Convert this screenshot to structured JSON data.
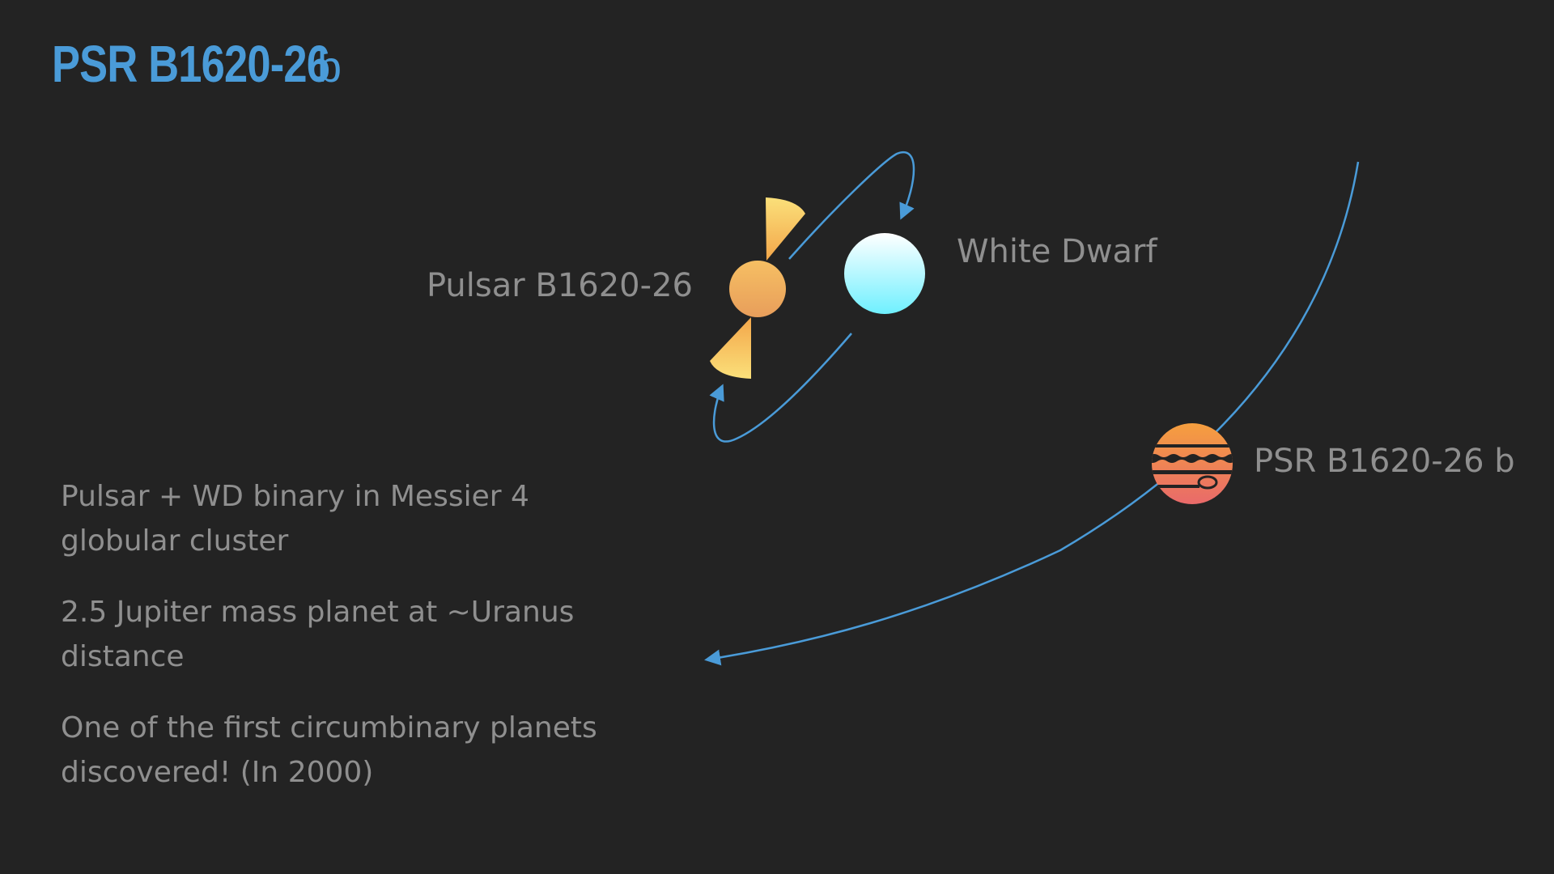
{
  "title": {
    "main": "PSR B1620-26",
    "suffix": "b"
  },
  "labels": {
    "pulsar": "Pulsar B1620-26",
    "white_dwarf": "White Dwarf",
    "planet": "PSR B1620-26 b"
  },
  "bullets": [
    "Pulsar + WD binary in Messier 4 globular cluster",
    "2.5 Jupiter mass planet at ~Uranus distance",
    "One of the first circumbinary planets discovered! (In 2000)"
  ],
  "colors": {
    "background": "#232323",
    "title": "#4a9bd8",
    "text": "#8f8f8f",
    "orbit": "#4a9bd8",
    "pulsar_top": "#f6bf63",
    "pulsar_bottom": "#e89e5b",
    "white_dwarf_top": "#ffffff",
    "white_dwarf_bottom": "#6ff0ff",
    "planet_top": "#f59f3e",
    "planet_bottom": "#e96a6a"
  },
  "icons": {
    "pulsar": "pulsar-icon",
    "white_dwarf": "white-dwarf-icon",
    "planet": "gas-giant-icon"
  }
}
